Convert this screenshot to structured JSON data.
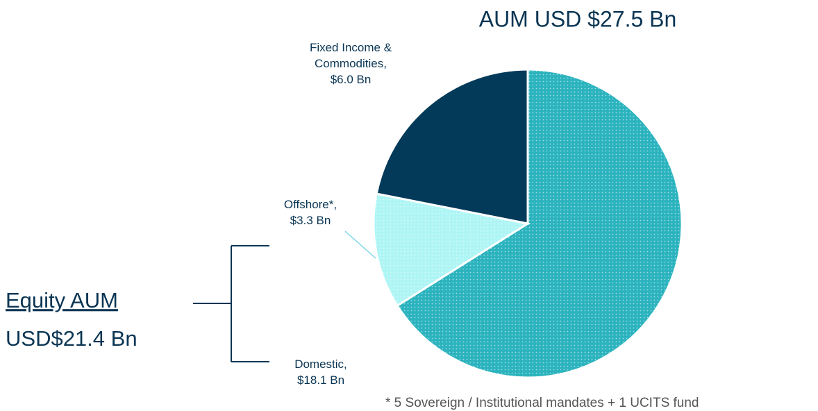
{
  "chart_data": {
    "type": "pie",
    "title": "AUM USD $27.5 Bn",
    "categories": [
      "Domestic,",
      "Offshore*,",
      "Fixed Income & Commodities,"
    ],
    "values": [
      18.1,
      3.3,
      6.0
    ],
    "value_labels": [
      "$18.1 Bn",
      "$3.3 Bn",
      "$6.0 Bn"
    ],
    "colors": [
      "#2bb3be",
      "#aef5f5",
      "#033a5a"
    ],
    "annotations": [
      "Equity AUM ",
      "USD$21.4 Bn"
    ],
    "footnote": "* 5 Sovereign / Institutional mandates + 1 UCITS fund"
  }
}
